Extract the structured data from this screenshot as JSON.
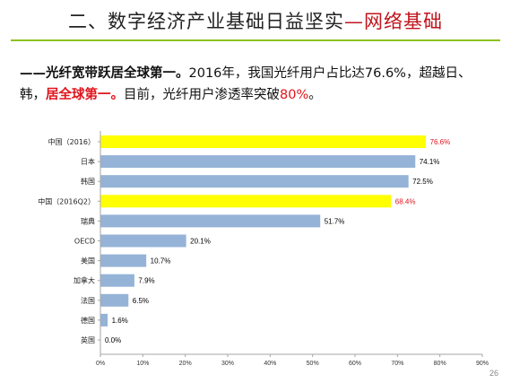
{
  "slide": {
    "title_main": "二、数字经济产业基础日益坚实",
    "title_accent": "—网络基础",
    "headline": {
      "p1": "——光纤宽带跃居全球第一。",
      "p2": "2016年，我国光纤用户占比达76.6%，超越日、韩，",
      "p3": "居全球第一。",
      "p4": "目前，光纤用户渗透率突破",
      "p5": "80%",
      "p6": "。"
    },
    "page_number": "26"
  },
  "chart_data": {
    "type": "bar",
    "orientation": "horizontal",
    "categories": [
      "中国（2016）",
      "日本",
      "韩国",
      "中国（2016Q2）",
      "瑞典",
      "OECD",
      "美国",
      "加拿大",
      "法国",
      "德国",
      "英国"
    ],
    "values": [
      76.6,
      74.1,
      72.5,
      68.4,
      51.7,
      20.1,
      10.7,
      7.9,
      6.5,
      1.6,
      0.0
    ],
    "value_labels": [
      "76.6%",
      "74.1%",
      "72.5%",
      "68.4%",
      "51.7%",
      "20.1%",
      "10.7%",
      "7.9%",
      "6.5%",
      "1.6%",
      "0.0%"
    ],
    "highlighted": [
      true,
      false,
      false,
      true,
      false,
      false,
      false,
      false,
      false,
      false,
      false
    ],
    "xlim": [
      0,
      90
    ],
    "xticks": [
      0,
      10,
      20,
      30,
      40,
      50,
      60,
      70,
      80,
      90
    ],
    "xtick_labels": [
      "0%",
      "10%",
      "20%",
      "30%",
      "40%",
      "50%",
      "60%",
      "70%",
      "80%",
      "90%"
    ],
    "grid": false,
    "colors": {
      "bar": "#95b3d7",
      "highlight_bar": "#ffff00",
      "label": "#000000",
      "highlight_label": "#e0141c"
    }
  }
}
